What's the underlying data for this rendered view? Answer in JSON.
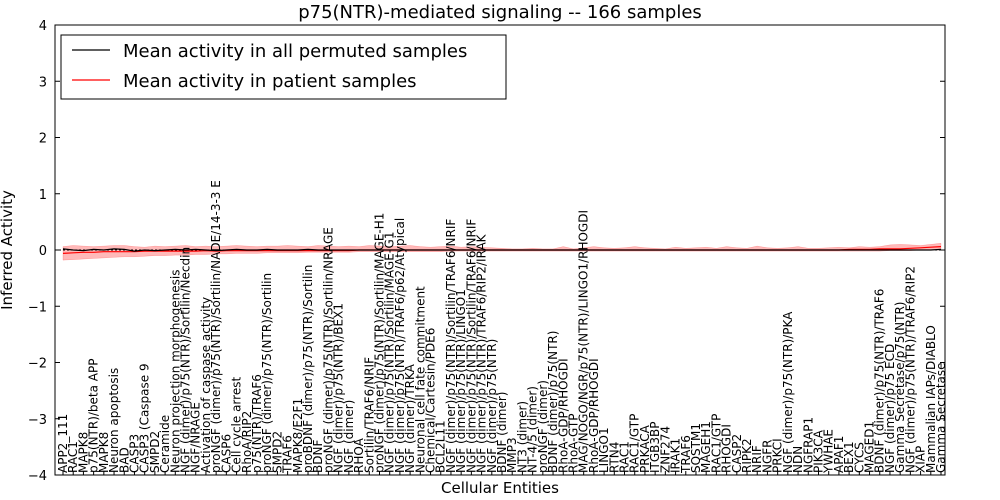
{
  "chart_data": {
    "type": "line",
    "title": "p75(NTR)-mediated signaling -- 166 samples",
    "xlabel": "Cellular Entities",
    "ylabel": "Inferred Activity",
    "ylim": [
      -4,
      4
    ],
    "yticks": [
      "4",
      "3",
      "2",
      "1",
      "0",
      "−1",
      "−2",
      "−3",
      "−4"
    ],
    "ytick_values": [
      4,
      3,
      2,
      1,
      0,
      -1,
      -2,
      -3,
      -4
    ],
    "legend": {
      "position": "top-left",
      "entries": [
        {
          "label": "Mean activity in all permuted samples",
          "color": "#000000"
        },
        {
          "label": "Mean activity in patient samples",
          "color": "#ff0000"
        }
      ]
    },
    "colors": {
      "permuted": "#000000",
      "patient": "#ff0000",
      "band": "#ff8080"
    },
    "categories": [
      "APP2_111",
      "RAC1",
      "MAPK8",
      "p75(NTR)/beta APP",
      "MAPK8",
      "Neuron apoptosis",
      "BAD",
      "CASP3",
      "CASP3 (Caspase 9",
      "SMPD2",
      "Ceramide",
      "Neuron projection morphogenesis",
      "NGF (dimer)/p75(NTR)/Sortilin/Necdin",
      "NGF/NRAGE",
      "Activation of caspase activity",
      "proNGF (dimer)/p75(NTR)/Sortilin/NADE/14-3-3 E",
      "CASP6",
      "Cell cycle arrest",
      "RhoA/RIP2",
      "p75(NTR)/TRAF6",
      "proNGF (dimer)/p75(NTR)/Sortilin",
      "SMPD2",
      "TRAF6",
      "MAPK8/E2F1",
      "proBDNF (dimer)/p75(NTR)/Sortilin",
      "BDNF",
      "proNGF (dimer)/p75(NTR)/Sortilin/NRAGE",
      "NGF (dimer)/p75(NTR)/BEX1",
      "NGF (dimer)",
      "RHOA",
      "Sortilin/TRAF6/NRIF",
      "proNGF (dimer)/p75(NTR)/Sortilin/MAGE-H1",
      "NGF (dimer)/p75(NTR)/Sortilin/MAGE-G1",
      "NGF (dimer)/p75(NTR)/TRAF6/p62/Atypical",
      "NGF (dimer)/TRKA",
      "Neuronal cell fate commitment",
      "Chemical/Cartesin/PDE6",
      "BCL2L11",
      "NGF (dimer)/p75(NTR)/Sortilin/TRAF6/NRIF",
      "NGF (dimer)/p75(NTR)/LINGO1",
      "NGF (dimer)/p75(NTR)/Sortilin/TRAF6/NRIF",
      "NGF (dimer)/p75(NTR)/TRAF6/RIP2/IRAK",
      "NGF (dimer)/p75(NTR)",
      "BDNF (dimer)",
      "MMP3",
      "NT3 (dimer)",
      "NT-4/5 (dimer)",
      "proNGF (dimer)",
      "BDNF (dimer)/p75(NTR)",
      "RhoA-GDP/RHOGDI",
      "RhoA-GTP",
      "MAG/NOGO/NGR/p75(NTR)/LINGO1/RHOGDI",
      "RhoA-GDP/RHOGDI",
      "LINGO1",
      "RTN4",
      "RAC1",
      "RAC1/GTP",
      "PRKACA",
      "ITGB3BP",
      "ZNF274",
      "IRAK1",
      "TRAF6",
      "SQSTM1",
      "MAGEH1",
      "RAC1/GTP",
      "RHOGDI",
      "CASP2",
      "RIPK2",
      "NRIF",
      "NGFR",
      "PRKCI",
      "NGF (dimer)/p75(NTR)/PKA",
      "NDN",
      "NGFRAP1",
      "PIK3CA",
      "YWHAE",
      "APAF1",
      "BEX1",
      "CYCS",
      "MAGED1",
      "BDNF (dimer)/p75(NTR)/TRAF6",
      "NGF (dimer)/p75 ECD",
      "Gamma Secretase/p75(NTR)",
      "NGF (dimer)/p75(NTR)/TRAF6/RIP2",
      "XIAP",
      "Mammalian IAPs/DIABLO",
      "Gamma Secretase"
    ],
    "series": [
      {
        "name": "Mean activity in all permuted samples",
        "values": [
          0.02,
          0.0,
          -0.01,
          0.01,
          0.0,
          0.02,
          0.01,
          -0.02,
          0.0,
          -0.01,
          0.0,
          0.01,
          0.0,
          0.01,
          0.0,
          -0.01,
          0.0,
          0.01,
          0.0,
          0.0,
          0.01,
          0.0,
          0.0,
          0.0,
          0.01,
          0.0,
          0.0,
          0.0,
          0.0,
          0.0,
          0.0,
          0.0,
          0.0,
          0.0,
          0.0,
          0.0,
          0.0,
          0.0,
          0.0,
          0.0,
          0.0,
          0.0,
          0.0,
          0.0,
          0.0,
          0.0,
          0.0,
          0.0,
          0.0,
          0.0,
          0.0,
          0.0,
          0.0,
          0.0,
          0.0,
          0.0,
          0.0,
          0.0,
          0.0,
          0.0,
          0.0,
          0.0,
          0.0,
          0.0,
          0.0,
          0.0,
          0.0,
          0.0,
          0.0,
          0.0,
          0.0,
          0.0,
          0.0,
          0.0,
          0.0,
          0.0,
          0.0,
          0.0,
          0.0,
          0.0,
          0.0,
          0.0,
          0.0,
          0.0,
          0.0,
          0.0,
          0.01
        ]
      },
      {
        "name": "Mean activity in patient samples",
        "values": [
          -0.06,
          -0.05,
          -0.04,
          -0.04,
          -0.03,
          -0.03,
          -0.03,
          -0.03,
          -0.02,
          -0.02,
          -0.02,
          -0.02,
          -0.02,
          -0.02,
          -0.01,
          -0.02,
          -0.01,
          -0.01,
          -0.01,
          -0.01,
          -0.01,
          -0.01,
          -0.01,
          -0.01,
          -0.01,
          -0.01,
          -0.01,
          -0.01,
          -0.01,
          0.0,
          0.0,
          0.0,
          0.0,
          0.0,
          0.0,
          0.0,
          0.0,
          0.0,
          0.0,
          0.0,
          0.0,
          0.0,
          0.0,
          0.0,
          0.0,
          0.0,
          0.0,
          0.0,
          0.0,
          0.0,
          0.0,
          0.0,
          0.0,
          0.0,
          0.0,
          0.0,
          0.0,
          0.0,
          0.0,
          0.0,
          0.0,
          0.0,
          0.0,
          0.0,
          0.0,
          0.0,
          0.0,
          0.0,
          0.0,
          0.0,
          0.0,
          0.0,
          0.0,
          0.0,
          0.0,
          0.0,
          0.0,
          0.01,
          0.01,
          0.01,
          0.02,
          0.02,
          0.02,
          0.03,
          0.04,
          0.05,
          0.06
        ]
      },
      {
        "name": "Patient samples band (upper)",
        "values": [
          0.06,
          0.08,
          0.07,
          0.06,
          0.07,
          0.08,
          0.08,
          0.06,
          0.05,
          0.07,
          0.06,
          0.07,
          0.08,
          0.06,
          0.07,
          0.06,
          0.07,
          0.08,
          0.07,
          0.06,
          0.07,
          0.07,
          0.08,
          0.07,
          0.06,
          0.08,
          0.07,
          0.06,
          0.07,
          0.06,
          0.08,
          0.07,
          0.06,
          0.07,
          0.08,
          0.06,
          0.05,
          0.06,
          0.07,
          0.05,
          0.06,
          0.05,
          0.04,
          0.03,
          0.02,
          0.02,
          0.03,
          0.02,
          0.02,
          0.06,
          0.02,
          0.04,
          0.06,
          0.04,
          0.03,
          0.04,
          0.06,
          0.04,
          0.03,
          0.02,
          0.05,
          0.03,
          0.04,
          0.05,
          0.03,
          0.06,
          0.04,
          0.03,
          0.07,
          0.04,
          0.03,
          0.04,
          0.06,
          0.03,
          0.03,
          0.04,
          0.05,
          0.04,
          0.06,
          0.05,
          0.06,
          0.09,
          0.1,
          0.09,
          0.08,
          0.1,
          0.12
        ]
      },
      {
        "name": "Patient samples band (lower)",
        "values": [
          -0.18,
          -0.17,
          -0.16,
          -0.15,
          -0.14,
          -0.13,
          -0.12,
          -0.12,
          -0.11,
          -0.1,
          -0.1,
          -0.09,
          -0.09,
          -0.08,
          -0.08,
          -0.07,
          -0.07,
          -0.06,
          -0.06,
          -0.06,
          -0.05,
          -0.05,
          -0.05,
          -0.05,
          -0.04,
          -0.04,
          -0.04,
          -0.04,
          -0.04,
          -0.03,
          -0.03,
          -0.03,
          -0.03,
          -0.03,
          -0.03,
          -0.03,
          -0.03,
          -0.03,
          -0.02,
          -0.02,
          -0.02,
          -0.02,
          -0.02,
          -0.02,
          -0.02,
          -0.02,
          -0.02,
          -0.02,
          -0.02,
          -0.02,
          -0.02,
          -0.02,
          -0.02,
          -0.02,
          -0.02,
          -0.02,
          -0.02,
          -0.02,
          -0.02,
          -0.02,
          -0.02,
          -0.02,
          -0.02,
          -0.02,
          -0.02,
          -0.02,
          -0.02,
          -0.02,
          -0.02,
          -0.02,
          -0.02,
          -0.02,
          -0.02,
          -0.02,
          -0.02,
          -0.02,
          -0.02,
          -0.02,
          -0.02,
          -0.02,
          -0.02,
          -0.01,
          -0.01,
          -0.01,
          0.0,
          0.0,
          0.0
        ]
      }
    ]
  }
}
